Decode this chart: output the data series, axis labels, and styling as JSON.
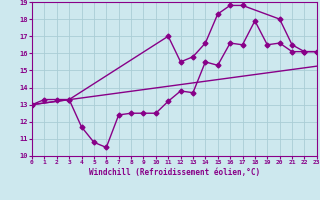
{
  "xlabel": "Windchill (Refroidissement éolien,°C)",
  "xlim": [
    0,
    23
  ],
  "ylim": [
    10,
    19
  ],
  "xticks": [
    0,
    1,
    2,
    3,
    4,
    5,
    6,
    7,
    8,
    9,
    10,
    11,
    12,
    13,
    14,
    15,
    16,
    17,
    18,
    19,
    20,
    21,
    22,
    23
  ],
  "yticks": [
    10,
    11,
    12,
    13,
    14,
    15,
    16,
    17,
    18,
    19
  ],
  "background_color": "#cde8ee",
  "grid_color": "#aacdd5",
  "line_color": "#880088",
  "line1_x": [
    0,
    1,
    2,
    3,
    4,
    5,
    6,
    7,
    8,
    9,
    10,
    11,
    12,
    13,
    14,
    15,
    16,
    17,
    18,
    19,
    20,
    21,
    22,
    23
  ],
  "line1_y": [
    13.0,
    13.3,
    13.3,
    13.3,
    11.7,
    10.8,
    10.5,
    12.4,
    12.5,
    12.5,
    12.5,
    13.2,
    13.8,
    13.7,
    15.5,
    15.3,
    16.6,
    16.5,
    17.9,
    16.5,
    16.6,
    16.1,
    16.1,
    16.1
  ],
  "line2_x": [
    0,
    3,
    11,
    12,
    13,
    14,
    15,
    16,
    17,
    20,
    21,
    22,
    23
  ],
  "line2_y": [
    13.0,
    13.3,
    17.0,
    15.5,
    15.8,
    16.6,
    18.3,
    18.8,
    18.8,
    18.0,
    16.5,
    16.1,
    16.1
  ],
  "line3_x": [
    0,
    23
  ],
  "line3_y": [
    13.0,
    15.25
  ],
  "marker": "D",
  "markersize": 2.5,
  "linewidth": 1.0
}
